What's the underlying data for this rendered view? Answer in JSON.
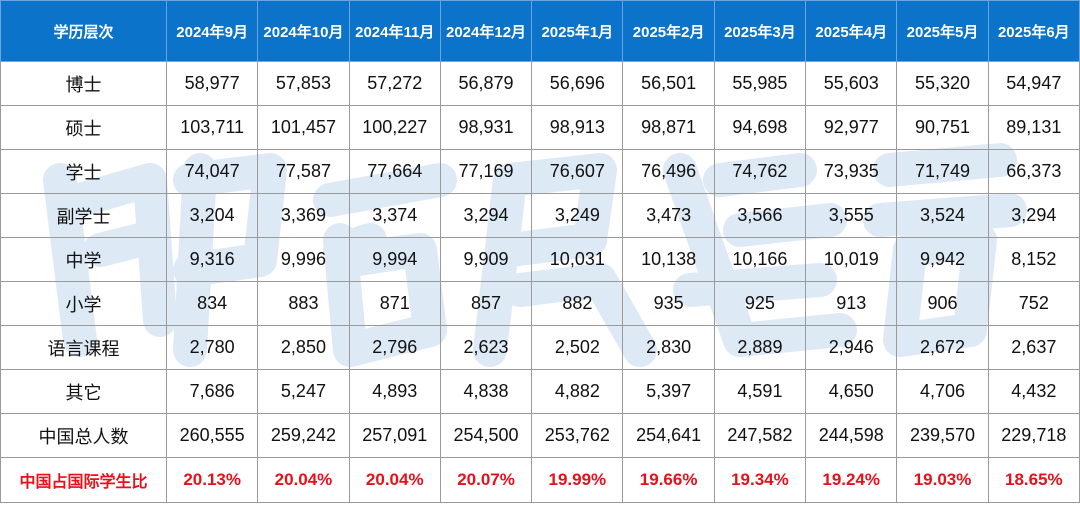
{
  "table": {
    "header": [
      "学历层次",
      "2024年9月",
      "2024年10月",
      "2024年11月",
      "2024年12月",
      "2025年1月",
      "2025年2月",
      "2025年3月",
      "2025年4月",
      "2025年5月",
      "2025年6月"
    ],
    "rows": [
      {
        "label": "博士",
        "values": [
          "58,977",
          "57,853",
          "57,272",
          "56,879",
          "56,696",
          "56,501",
          "55,985",
          "55,603",
          "55,320",
          "54,947"
        ]
      },
      {
        "label": "硕士",
        "values": [
          "103,711",
          "101,457",
          "100,227",
          "98,931",
          "98,913",
          "98,871",
          "94,698",
          "92,977",
          "90,751",
          "89,131"
        ]
      },
      {
        "label": "学士",
        "values": [
          "74,047",
          "77,587",
          "77,664",
          "77,169",
          "76,607",
          "76,496",
          "74,762",
          "73,935",
          "71,749",
          "66,373"
        ]
      },
      {
        "label": "副学士",
        "values": [
          "3,204",
          "3,369",
          "3,374",
          "3,294",
          "3,249",
          "3,473",
          "3,566",
          "3,555",
          "3,524",
          "3,294"
        ]
      },
      {
        "label": "中学",
        "values": [
          "9,316",
          "9,996",
          "9,994",
          "9,909",
          "10,031",
          "10,138",
          "10,166",
          "10,019",
          "9,942",
          "8,152"
        ]
      },
      {
        "label": "小学",
        "values": [
          "834",
          "883",
          "871",
          "857",
          "882",
          "935",
          "925",
          "913",
          "906",
          "752"
        ]
      },
      {
        "label": "语言课程",
        "values": [
          "2,780",
          "2,850",
          "2,796",
          "2,623",
          "2,502",
          "2,830",
          "2,889",
          "2,946",
          "2,672",
          "2,637"
        ]
      },
      {
        "label": "其它",
        "values": [
          "7,686",
          "5,247",
          "4,893",
          "4,838",
          "4,882",
          "5,397",
          "4,591",
          "4,650",
          "4,706",
          "4,432"
        ]
      },
      {
        "label": "中国总人数",
        "values": [
          "260,555",
          "259,242",
          "257,091",
          "254,500",
          "253,762",
          "254,641",
          "247,582",
          "244,598",
          "239,570",
          "229,718"
        ]
      }
    ],
    "ratio_row": {
      "label": "中国占国际学生比",
      "values": [
        "20.13%",
        "20.04%",
        "20.04%",
        "20.07%",
        "19.99%",
        "19.66%",
        "19.34%",
        "19.24%",
        "19.03%",
        "18.65%"
      ]
    }
  },
  "colors": {
    "header_bg": "#0b73c9",
    "header_text": "#ffffff",
    "ratio_text": "#e8101a",
    "watermark": "#a9c6e8"
  }
}
